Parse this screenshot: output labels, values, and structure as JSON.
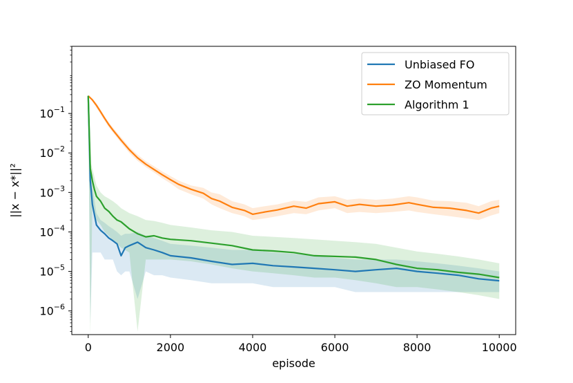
{
  "chart_data": {
    "type": "line",
    "xlabel": "episode",
    "ylabel": "||x − x*||²",
    "xlim": [
      -400,
      10400
    ],
    "ylim_log10": [
      -6.6,
      0.7
    ],
    "yscale": "log",
    "x_ticks": [
      0,
      2000,
      4000,
      6000,
      8000,
      10000
    ],
    "x_tick_labels": [
      "0",
      "2000",
      "4000",
      "6000",
      "8000",
      "10000"
    ],
    "y_ticks_log10": [
      -6,
      -5,
      -4,
      -3,
      -2,
      -1
    ],
    "y_tick_labels": [
      "10",
      "10",
      "10",
      "10",
      "10",
      "10"
    ],
    "y_tick_exponents": [
      "−6",
      "−5",
      "−4",
      "−3",
      "−2",
      "−1"
    ],
    "grid": false,
    "legend_position": "top-right",
    "series": [
      {
        "name": "Unbiased FO",
        "color": "#1f77b4",
        "x": [
          0,
          50,
          100,
          200,
          300,
          400,
          500,
          600,
          700,
          800,
          900,
          1000,
          1200,
          1400,
          1600,
          1800,
          2000,
          2500,
          3000,
          3500,
          4000,
          4500,
          5000,
          5500,
          6000,
          6500,
          7000,
          7500,
          8000,
          8500,
          9000,
          9500,
          10000
        ],
        "y": [
          0.28,
          0.002,
          0.0005,
          0.00015,
          0.00011,
          9e-05,
          7e-05,
          6e-05,
          5e-05,
          2.5e-05,
          4e-05,
          4.5e-05,
          5.5e-05,
          4e-05,
          3.5e-05,
          3e-05,
          2.5e-05,
          2.2e-05,
          1.8e-05,
          1.5e-05,
          1.6e-05,
          1.4e-05,
          1.3e-05,
          1.2e-05,
          1.1e-05,
          1e-05,
          1.1e-05,
          1.2e-05,
          1e-05,
          9e-06,
          8e-06,
          6.5e-06,
          5.8e-06
        ],
        "band_lower": [
          0.28,
          5e-07,
          3e-05,
          3e-05,
          3e-05,
          2e-05,
          2e-05,
          2e-05,
          1e-05,
          8e-06,
          1e-05,
          1e-05,
          2e-06,
          1e-05,
          8e-06,
          8e-06,
          7e-06,
          6e-06,
          5e-06,
          5e-06,
          5e-06,
          4e-06,
          4e-06,
          4e-06,
          4e-06,
          3e-06,
          3e-06,
          3e-06,
          3e-06,
          3e-06,
          3e-06,
          3e-06,
          3e-06
        ],
        "band_upper": [
          0.28,
          0.004,
          0.0015,
          0.0003,
          0.0002,
          0.00017,
          0.00014,
          0.00012,
          0.0001,
          8e-05,
          9e-05,
          9e-05,
          0.0001,
          8e-05,
          7e-05,
          6e-05,
          5e-05,
          4.5e-05,
          4e-05,
          3.5e-05,
          3.5e-05,
          3e-05,
          2.8e-05,
          2.5e-05,
          2.2e-05,
          2e-05,
          2e-05,
          2e-05,
          1.8e-05,
          1.6e-05,
          1.4e-05,
          1.2e-05,
          1e-05
        ]
      },
      {
        "name": "ZO Momentum",
        "color": "#ff7f0e",
        "x": [
          0,
          100,
          200,
          300,
          400,
          500,
          600,
          800,
          1000,
          1200,
          1400,
          1600,
          1800,
          2000,
          2200,
          2500,
          2800,
          3000,
          3200,
          3500,
          3800,
          4000,
          4300,
          4600,
          5000,
          5300,
          5600,
          6000,
          6300,
          6600,
          7000,
          7400,
          7800,
          8000,
          8400,
          8800,
          9200,
          9500,
          9800,
          10000
        ],
        "y": [
          0.28,
          0.22,
          0.16,
          0.11,
          0.075,
          0.052,
          0.038,
          0.021,
          0.012,
          0.0075,
          0.0052,
          0.0038,
          0.0028,
          0.0021,
          0.0016,
          0.0012,
          0.00095,
          0.0007,
          0.0006,
          0.00042,
          0.00035,
          0.00028,
          0.00032,
          0.00036,
          0.00045,
          0.0004,
          0.00052,
          0.00058,
          0.00045,
          0.0005,
          0.00045,
          0.00048,
          0.00055,
          0.0005,
          0.00042,
          0.0004,
          0.00035,
          0.0003,
          0.0004,
          0.00045
        ],
        "band_lower": [
          0.28,
          0.2,
          0.14,
          0.095,
          0.065,
          0.045,
          0.033,
          0.018,
          0.01,
          0.0063,
          0.0044,
          0.0032,
          0.0023,
          0.0017,
          0.0012,
          0.0009,
          0.0007,
          0.0005,
          0.0004,
          0.0003,
          0.00025,
          0.0002,
          0.00022,
          0.00025,
          0.0003,
          0.00028,
          0.00035,
          0.0004,
          0.0003,
          0.00032,
          0.0003,
          0.00032,
          0.00035,
          0.00032,
          0.00028,
          0.00025,
          0.00022,
          0.0002,
          0.00026,
          0.0003
        ],
        "band_upper": [
          0.28,
          0.24,
          0.18,
          0.125,
          0.085,
          0.06,
          0.044,
          0.025,
          0.014,
          0.009,
          0.0062,
          0.0046,
          0.0034,
          0.0026,
          0.002,
          0.0015,
          0.0013,
          0.001,
          0.0009,
          0.0006,
          0.0005,
          0.0004,
          0.00045,
          0.0005,
          0.00062,
          0.00058,
          0.00075,
          0.0008,
          0.00065,
          0.0007,
          0.00065,
          0.0007,
          0.0008,
          0.00075,
          0.00062,
          0.0006,
          0.00055,
          0.00045,
          0.0006,
          0.00065
        ]
      },
      {
        "name": "Algorithm 1",
        "color": "#2ca02c",
        "x": [
          0,
          50,
          100,
          150,
          200,
          300,
          400,
          500,
          600,
          700,
          800,
          1000,
          1200,
          1400,
          1600,
          1800,
          2000,
          2500,
          3000,
          3500,
          4000,
          4500,
          5000,
          5500,
          6000,
          6500,
          7000,
          7500,
          8000,
          8500,
          9000,
          9500,
          10000
        ],
        "y": [
          0.28,
          0.004,
          0.002,
          0.0012,
          0.0008,
          0.0006,
          0.0004,
          0.00033,
          0.00025,
          0.0002,
          0.00018,
          0.00012,
          9e-05,
          7.5e-05,
          8e-05,
          7e-05,
          6.5e-05,
          6e-05,
          5.2e-05,
          4.5e-05,
          3.5e-05,
          3.3e-05,
          3e-05,
          2.5e-05,
          2.4e-05,
          2.3e-05,
          2e-05,
          1.5e-05,
          1.2e-05,
          1.1e-05,
          9.5e-06,
          8.5e-06,
          7e-06
        ],
        "band_lower": [
          0.28,
          2e-07,
          0.0005,
          0.0003,
          0.0002,
          0.00015,
          0.0001,
          8e-05,
          6e-05,
          5e-05,
          4e-05,
          3e-05,
          3e-07,
          2e-05,
          2e-05,
          2e-05,
          2e-05,
          1.8e-05,
          1.5e-05,
          1.2e-05,
          1e-05,
          9e-06,
          8e-06,
          7e-06,
          7e-06,
          6e-06,
          5e-06,
          4e-06,
          4e-06,
          3.5e-06,
          3e-06,
          2.5e-06,
          2e-06
        ],
        "band_upper": [
          0.28,
          0.006,
          0.004,
          0.0025,
          0.0015,
          0.001,
          0.0008,
          0.0007,
          0.0006,
          0.0005,
          0.0004,
          0.0003,
          0.00025,
          0.0002,
          0.00019,
          0.00017,
          0.00015,
          0.00013,
          0.00011,
          0.0001,
          8e-05,
          7.5e-05,
          7e-05,
          6.5e-05,
          6e-05,
          5.5e-05,
          5e-05,
          4e-05,
          3.2e-05,
          2.8e-05,
          2.4e-05,
          2e-05,
          1.6e-05
        ]
      }
    ]
  }
}
